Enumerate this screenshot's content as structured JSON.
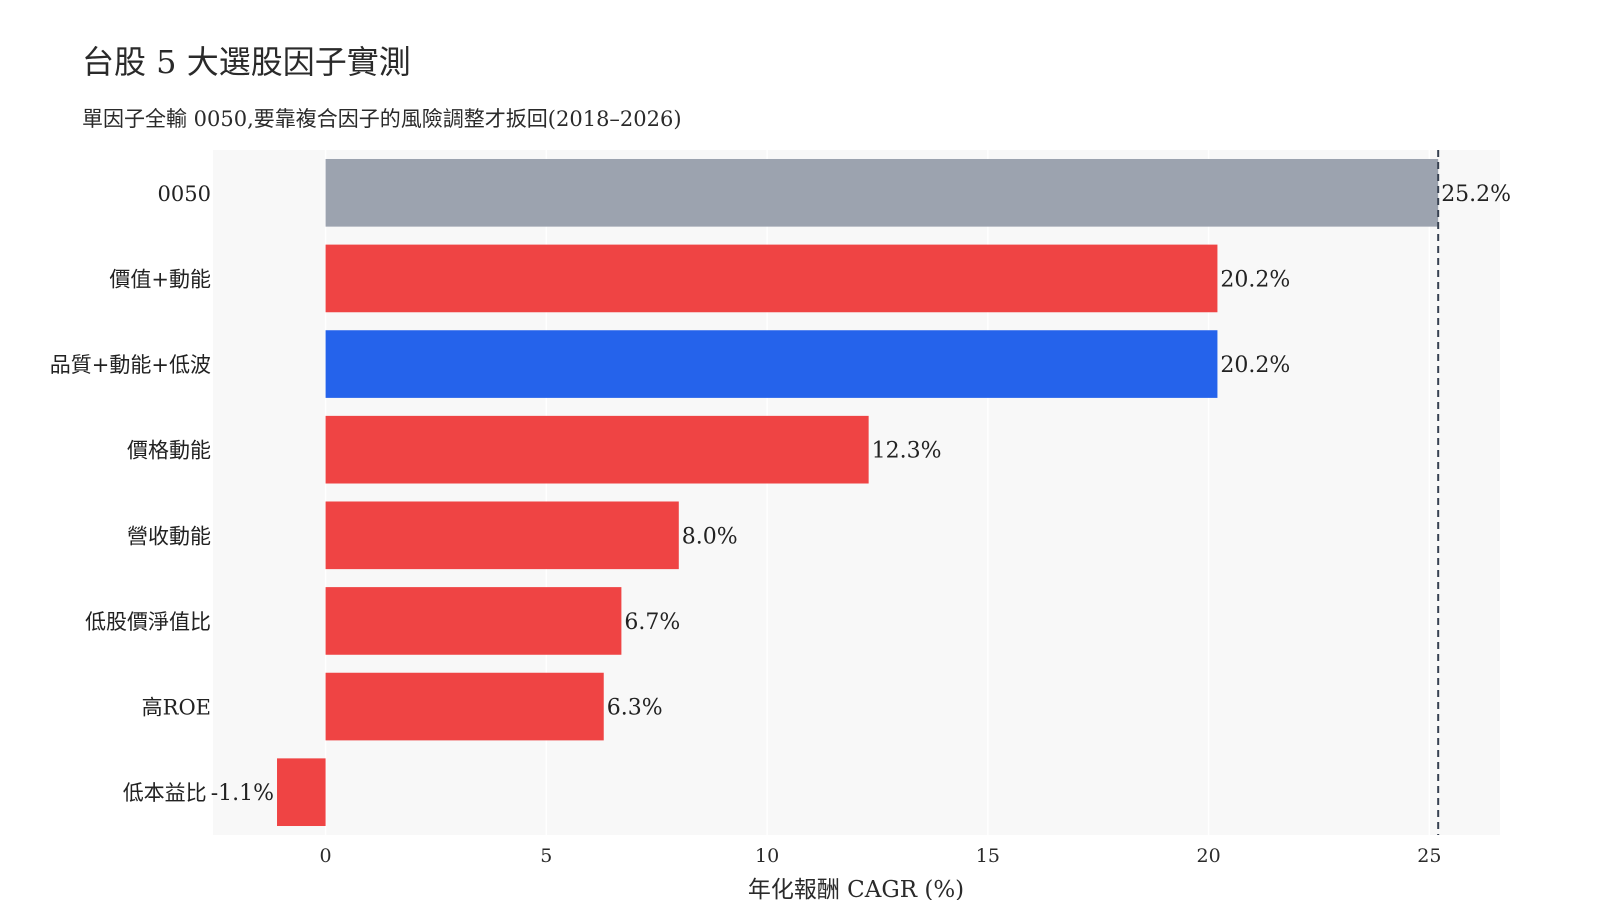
{
  "title": "台股 5 大選股因子實測",
  "subtitle": "單因子全輸 0050,要靠複合因子的風險調整才扳回(2018–2026)",
  "chart_data": {
    "type": "bar",
    "orientation": "horizontal",
    "categories": [
      "0050",
      "價值+動能",
      "品質+動能+低波",
      "價格動能",
      "營收動能",
      "低股價淨值比",
      "高ROE",
      "低本益比"
    ],
    "values": [
      25.2,
      20.2,
      20.2,
      12.3,
      8.0,
      6.7,
      6.3,
      -1.1
    ],
    "data_labels": [
      "25.2%",
      "20.2%",
      "20.2%",
      "12.3%",
      "8.0%",
      "6.7%",
      "6.3%",
      "-1.1%"
    ],
    "bar_colors": [
      "#9ca3af",
      "#ef4444",
      "#2563eb",
      "#ef4444",
      "#ef4444",
      "#ef4444",
      "#ef4444",
      "#ef4444"
    ],
    "xlabel": "年化報酬 CAGR (%)",
    "ylabel": "",
    "xlim": [
      -2.55,
      26.6
    ],
    "xticks": [
      0,
      5,
      10,
      15,
      20,
      25
    ],
    "xtick_labels": [
      "0",
      "5",
      "10",
      "15",
      "20",
      "25"
    ],
    "reference_line": {
      "x": 25.2,
      "style": "dashed",
      "color": "#374151"
    },
    "plot_background": "#f8f8f8",
    "grid": true,
    "legend": "none"
  }
}
